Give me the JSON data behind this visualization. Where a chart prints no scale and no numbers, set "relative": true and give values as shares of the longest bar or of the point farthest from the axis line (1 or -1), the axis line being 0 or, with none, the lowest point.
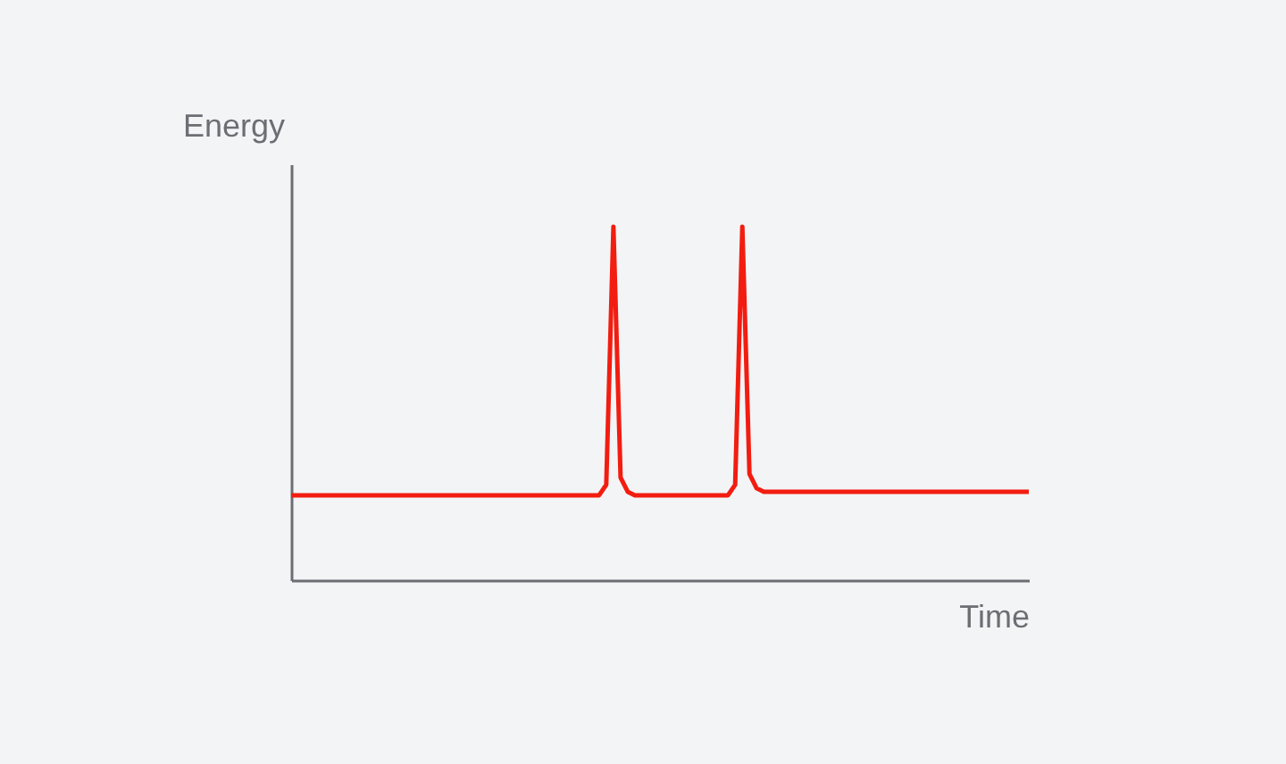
{
  "chart_data": {
    "type": "line",
    "relative": true,
    "xlabel": "Time",
    "ylabel": "Energy",
    "grid": false,
    "legend": false,
    "marker": "none",
    "line_style": "solid",
    "categories": [
      null,
      null,
      null,
      null,
      null,
      null,
      null,
      null,
      null,
      null,
      null,
      null,
      null,
      null,
      null,
      null,
      null,
      null,
      null,
      null,
      null,
      null,
      null,
      null,
      null,
      null,
      null,
      null,
      null,
      null,
      null,
      null,
      null,
      null,
      null,
      null,
      null,
      null,
      null,
      null,
      null,
      null,
      null,
      null,
      null,
      null,
      null,
      null,
      null,
      null,
      null,
      null,
      null,
      null,
      null,
      null,
      null,
      null,
      null,
      null,
      null,
      null,
      null,
      null,
      null,
      null,
      null,
      null,
      null,
      null,
      null,
      null,
      null,
      null,
      null,
      null,
      null,
      null,
      null,
      null,
      null,
      null,
      null,
      null,
      null,
      null,
      null,
      null,
      null,
      null,
      null,
      null,
      null,
      null,
      null,
      null,
      null,
      null,
      null,
      null,
      null,
      null,
      null,
      null
    ],
    "series": [
      {
        "color": "#f21d10",
        "values": [
          0.24,
          0.24,
          0.24,
          0.24,
          0.24,
          0.24,
          0.24,
          0.24,
          0.24,
          0.24,
          0.24,
          0.24,
          0.24,
          0.24,
          0.24,
          0.24,
          0.24,
          0.24,
          0.24,
          0.24,
          0.24,
          0.24,
          0.24,
          0.24,
          0.24,
          0.24,
          0.24,
          0.24,
          0.24,
          0.24,
          0.24,
          0.24,
          0.24,
          0.24,
          0.24,
          0.24,
          0.24,
          0.24,
          0.24,
          0.24,
          0.24,
          0.24,
          0.24,
          0.24,
          0.27,
          1,
          0.29,
          0.25,
          0.24,
          0.24,
          0.24,
          0.24,
          0.24,
          0.24,
          0.24,
          0.24,
          0.24,
          0.24,
          0.24,
          0.24,
          0.24,
          0.24,
          0.27,
          1,
          0.3,
          0.26,
          0.25,
          0.25,
          0.25,
          0.25,
          0.25,
          0.25,
          0.25,
          0.25,
          0.25,
          0.25,
          0.25,
          0.25,
          0.25,
          0.25,
          0.25,
          0.25,
          0.25,
          0.25,
          0.25,
          0.25,
          0.25,
          0.25,
          0.25,
          0.25,
          0.25,
          0.25,
          0.25,
          0.25,
          0.25,
          0.25,
          0.25,
          0.25,
          0.25,
          0.25,
          0.25,
          0.25,
          0.25,
          0.25
        ]
      }
    ]
  }
}
